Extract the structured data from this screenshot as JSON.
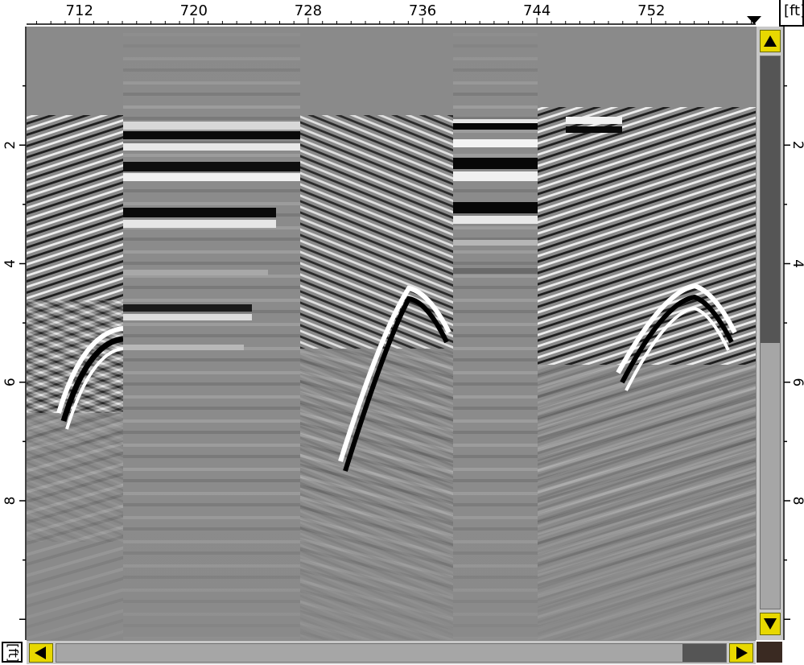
{
  "app": {
    "depth_unit": "ft",
    "distance_unit": "ft"
  },
  "top_ruler": {
    "tick_labels": [
      "712",
      "720",
      "728",
      "736",
      "744",
      "752"
    ],
    "tick_values": [
      712,
      720,
      728,
      736,
      744,
      752
    ],
    "range": [
      708.3,
      759.3
    ],
    "unit_label": "[ft]",
    "position_marker_icon": "triangle-down-icon"
  },
  "depth_ruler": {
    "tick_labels": [
      "2",
      "4",
      "6",
      "8"
    ],
    "tick_values": [
      2,
      4,
      6,
      8
    ],
    "range": [
      0,
      10.35
    ]
  },
  "scrollbars": {
    "vertical": {
      "up_icon": "arrow-up-icon",
      "down_icon": "arrow-down-icon",
      "thumb_fraction_start": 0.0,
      "thumb_fraction_size": 0.52
    },
    "horizontal": {
      "left_icon": "arrow-left-icon",
      "right_icon": "arrow-right-icon",
      "thumb_fraction_start": 0.93,
      "thumb_fraction_size": 0.07
    }
  },
  "colors": {
    "background_gray": "#8a8a8a",
    "arrow_button": "#e8d800",
    "scroll_thumb": "#555555",
    "corner_swatch": "#3a2a22"
  }
}
